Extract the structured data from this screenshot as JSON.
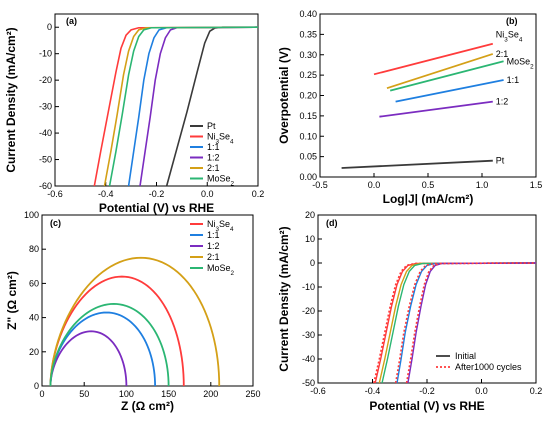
{
  "chart_data": [
    {
      "type": "line",
      "panel_label": "(a)",
      "xlabel": "Potential (V) vs RHE",
      "ylabel": "Current Density (mA/cm²)",
      "xlim": [
        -0.6,
        0.2
      ],
      "ylim": [
        -60,
        5
      ],
      "xticks": [
        -0.6,
        -0.4,
        -0.2,
        0.0,
        0.2
      ],
      "xtick_labels": [
        "-0.6",
        "-0.4",
        "-0.2",
        "0.0",
        "0.2"
      ],
      "yticks": [
        -60,
        -50,
        -40,
        -30,
        -20,
        -10,
        0
      ],
      "ytick_labels": [
        "-60",
        "-50",
        "-40",
        "-30",
        "-20",
        "-10",
        "0"
      ],
      "legend_position": "bottom-right",
      "series": [
        {
          "name": "Pt",
          "color": "#3a3a3a",
          "x": [
            -0.16,
            -0.12,
            -0.08,
            -0.04,
            -0.01,
            0.01,
            0.03,
            0.06,
            0.2
          ],
          "y": [
            -60,
            -46,
            -32,
            -17,
            -6,
            -1.5,
            -0.3,
            0,
            0
          ]
        },
        {
          "name": "Ni3Se4",
          "color": "#ff3b3b",
          "x": [
            -0.445,
            -0.42,
            -0.39,
            -0.36,
            -0.34,
            -0.32,
            -0.3,
            -0.27,
            0.2
          ],
          "y": [
            -60,
            -47,
            -32,
            -17,
            -8,
            -3,
            -1,
            -0.2,
            0
          ]
        },
        {
          "name": "1:1",
          "color": "#1f7fe0",
          "x": [
            -0.31,
            -0.29,
            -0.27,
            -0.25,
            -0.23,
            -0.21,
            -0.19,
            -0.16,
            0.2
          ],
          "y": [
            -60,
            -47,
            -34,
            -20,
            -10,
            -4,
            -1,
            -0.2,
            0
          ]
        },
        {
          "name": "1:2",
          "color": "#7b2cc0",
          "x": [
            -0.265,
            -0.245,
            -0.225,
            -0.205,
            -0.185,
            -0.165,
            -0.145,
            -0.12,
            0.2
          ],
          "y": [
            -60,
            -47,
            -34,
            -20,
            -10,
            -4,
            -1,
            -0.2,
            0
          ]
        },
        {
          "name": "2:1",
          "color": "#d4a017",
          "x": [
            -0.405,
            -0.38,
            -0.355,
            -0.33,
            -0.31,
            -0.29,
            -0.27,
            -0.24,
            0.2
          ],
          "y": [
            -60,
            -47,
            -33,
            -18,
            -9,
            -3.5,
            -1,
            -0.2,
            0
          ]
        },
        {
          "name": "MoSe2",
          "color": "#2bb673",
          "x": [
            -0.385,
            -0.36,
            -0.335,
            -0.31,
            -0.29,
            -0.27,
            -0.25,
            -0.22,
            0.2
          ],
          "y": [
            -60,
            -47,
            -33,
            -18,
            -9,
            -3.5,
            -1,
            -0.2,
            0
          ]
        }
      ]
    },
    {
      "type": "line",
      "panel_label": "(b)",
      "xlabel": "Log|J| (mA/cm²)",
      "ylabel": "Overpotential (V)",
      "xlim": [
        -0.5,
        1.5
      ],
      "ylim": [
        0.0,
        0.4
      ],
      "xticks": [
        -0.5,
        0.0,
        0.5,
        1.0,
        1.5
      ],
      "xtick_labels": [
        "-0.5",
        "0.0",
        "0.5",
        "1.0",
        "1.5"
      ],
      "yticks": [
        0.0,
        0.05,
        0.1,
        0.15,
        0.2,
        0.25,
        0.3,
        0.35,
        0.4
      ],
      "ytick_labels": [
        "0.00",
        "0.05",
        "0.10",
        "0.15",
        "0.20",
        "0.25",
        "0.30",
        "0.35",
        "0.40"
      ],
      "series": [
        {
          "name": "Ni3Se4",
          "label_text": "Ni3Se4",
          "color": "#ff3b3b",
          "x": [
            0.0,
            1.1
          ],
          "y": [
            0.252,
            0.327
          ]
        },
        {
          "name": "2:1",
          "label_text": "2:1",
          "color": "#d4a017",
          "x": [
            0.12,
            1.1
          ],
          "y": [
            0.218,
            0.302
          ]
        },
        {
          "name": "MoSe2",
          "label_text": "MoSe2",
          "color": "#2bb673",
          "x": [
            0.15,
            1.2
          ],
          "y": [
            0.212,
            0.284
          ]
        },
        {
          "name": "1:1",
          "label_text": "1:1",
          "color": "#1f7fe0",
          "x": [
            0.2,
            1.2
          ],
          "y": [
            0.185,
            0.238
          ]
        },
        {
          "name": "1:2",
          "label_text": "1:2",
          "color": "#7b2cc0",
          "x": [
            0.05,
            1.1
          ],
          "y": [
            0.148,
            0.185
          ]
        },
        {
          "name": "Pt",
          "label_text": "Pt",
          "color": "#3a3a3a",
          "x": [
            -0.3,
            1.1
          ],
          "y": [
            0.022,
            0.04
          ]
        }
      ]
    },
    {
      "type": "line",
      "panel_label": "(c)",
      "xlabel": "Z (Ω cm²)",
      "ylabel": "Z\" (Ω cm²)",
      "xlim": [
        0,
        250
      ],
      "ylim": [
        0,
        100
      ],
      "xticks": [
        0,
        50,
        100,
        150,
        200,
        250
      ],
      "xtick_labels": [
        "0",
        "50",
        "100",
        "150",
        "200",
        "250"
      ],
      "yticks": [
        0,
        20,
        40,
        60,
        80,
        100
      ],
      "ytick_labels": [
        "0",
        "20",
        "40",
        "60",
        "80",
        "100"
      ],
      "legend_position": "top-right",
      "series": [
        {
          "name": "Ni3Se4",
          "color": "#ff3b3b",
          "r_start": 10,
          "r_end": 168,
          "peak": 64
        },
        {
          "name": "1:1",
          "color": "#1f7fe0",
          "r_start": 10,
          "r_end": 134,
          "peak": 43
        },
        {
          "name": "1:2",
          "color": "#7b2cc0",
          "r_start": 10,
          "r_end": 100,
          "peak": 32
        },
        {
          "name": "2:1",
          "color": "#d4a017",
          "r_start": 10,
          "r_end": 210,
          "peak": 75
        },
        {
          "name": "MoSe2",
          "color": "#2bb673",
          "r_start": 10,
          "r_end": 150,
          "peak": 48
        }
      ]
    },
    {
      "type": "line",
      "panel_label": "(d)",
      "xlabel": "Potential (V) vs RHE",
      "ylabel": "Current Density (mA/cm²)",
      "xlim": [
        -0.6,
        0.2
      ],
      "ylim": [
        -50,
        20
      ],
      "xticks": [
        -0.6,
        -0.4,
        -0.2,
        0.0,
        0.2
      ],
      "xtick_labels": [
        "-0.6",
        "-0.4",
        "-0.2",
        "0.0",
        "0.2"
      ],
      "yticks": [
        -50,
        -40,
        -30,
        -20,
        -10,
        0,
        10,
        20
      ],
      "ytick_labels": [
        "-50",
        "-40",
        "-30",
        "-20",
        "-10",
        "0",
        "10",
        "20"
      ],
      "legend_position": "bottom-right",
      "legend": [
        {
          "name": "Initial",
          "color": "#3a3a3a",
          "dash": false
        },
        {
          "name": "After1000 cycles",
          "color": "#ff3b3b",
          "dash": true
        }
      ],
      "series": [
        {
          "name": "Ni3Se4 initial",
          "color": "#ff3b3b",
          "dash": false,
          "x": [
            -0.39,
            -0.37,
            -0.35,
            -0.33,
            -0.31,
            -0.29,
            -0.27,
            -0.24,
            0.2
          ],
          "y": [
            -50,
            -40,
            -29,
            -18,
            -9,
            -3.5,
            -1,
            -0.2,
            0
          ]
        },
        {
          "name": "Ni3Se4 cycled",
          "color": "#ff3b3b",
          "dash": true,
          "x": [
            -0.395,
            -0.375,
            -0.355,
            -0.335,
            -0.315,
            -0.295,
            -0.275,
            -0.245,
            0.2
          ],
          "y": [
            -50,
            -40,
            -29,
            -18,
            -9,
            -3.5,
            -1,
            -0.2,
            0
          ]
        },
        {
          "name": "2:1 initial",
          "color": "#d4a017",
          "dash": false,
          "x": [
            -0.375,
            -0.355,
            -0.335,
            -0.315,
            -0.295,
            -0.275,
            -0.255,
            -0.225,
            0.2
          ],
          "y": [
            -50,
            -40,
            -29,
            -18,
            -9,
            -3.5,
            -1,
            -0.2,
            0
          ]
        },
        {
          "name": "MoSe2 initial",
          "color": "#2bb673",
          "dash": false,
          "x": [
            -0.365,
            -0.345,
            -0.325,
            -0.305,
            -0.285,
            -0.265,
            -0.245,
            -0.215,
            0.2
          ],
          "y": [
            -50,
            -40,
            -29,
            -18,
            -9,
            -3.5,
            -1,
            -0.2,
            0
          ]
        },
        {
          "name": "1:1 initial",
          "color": "#1f7fe0",
          "dash": false,
          "x": [
            -0.31,
            -0.295,
            -0.28,
            -0.26,
            -0.24,
            -0.22,
            -0.2,
            -0.17,
            0.2
          ],
          "y": [
            -50,
            -40,
            -29,
            -18,
            -9,
            -3.5,
            -1,
            -0.2,
            0
          ]
        },
        {
          "name": "1:1 cycled",
          "color": "#ff3b3b",
          "dash": true,
          "x": [
            -0.315,
            -0.3,
            -0.285,
            -0.265,
            -0.245,
            -0.225,
            -0.205,
            -0.175,
            0.2
          ],
          "y": [
            -50,
            -40,
            -29,
            -18,
            -9,
            -3.5,
            -1,
            -0.2,
            0
          ]
        },
        {
          "name": "1:2 initial",
          "color": "#7b2cc0",
          "dash": false,
          "x": [
            -0.27,
            -0.255,
            -0.24,
            -0.222,
            -0.205,
            -0.188,
            -0.17,
            -0.145,
            0.2
          ],
          "y": [
            -50,
            -40,
            -29,
            -18,
            -9,
            -3.5,
            -1,
            -0.2,
            0
          ]
        },
        {
          "name": "1:2 cycled",
          "color": "#ff3b3b",
          "dash": true,
          "x": [
            -0.275,
            -0.26,
            -0.245,
            -0.227,
            -0.21,
            -0.193,
            -0.175,
            -0.15,
            0.2
          ],
          "y": [
            -50,
            -40,
            -29,
            -18,
            -9,
            -3.5,
            -1,
            -0.2,
            0
          ]
        }
      ]
    }
  ]
}
